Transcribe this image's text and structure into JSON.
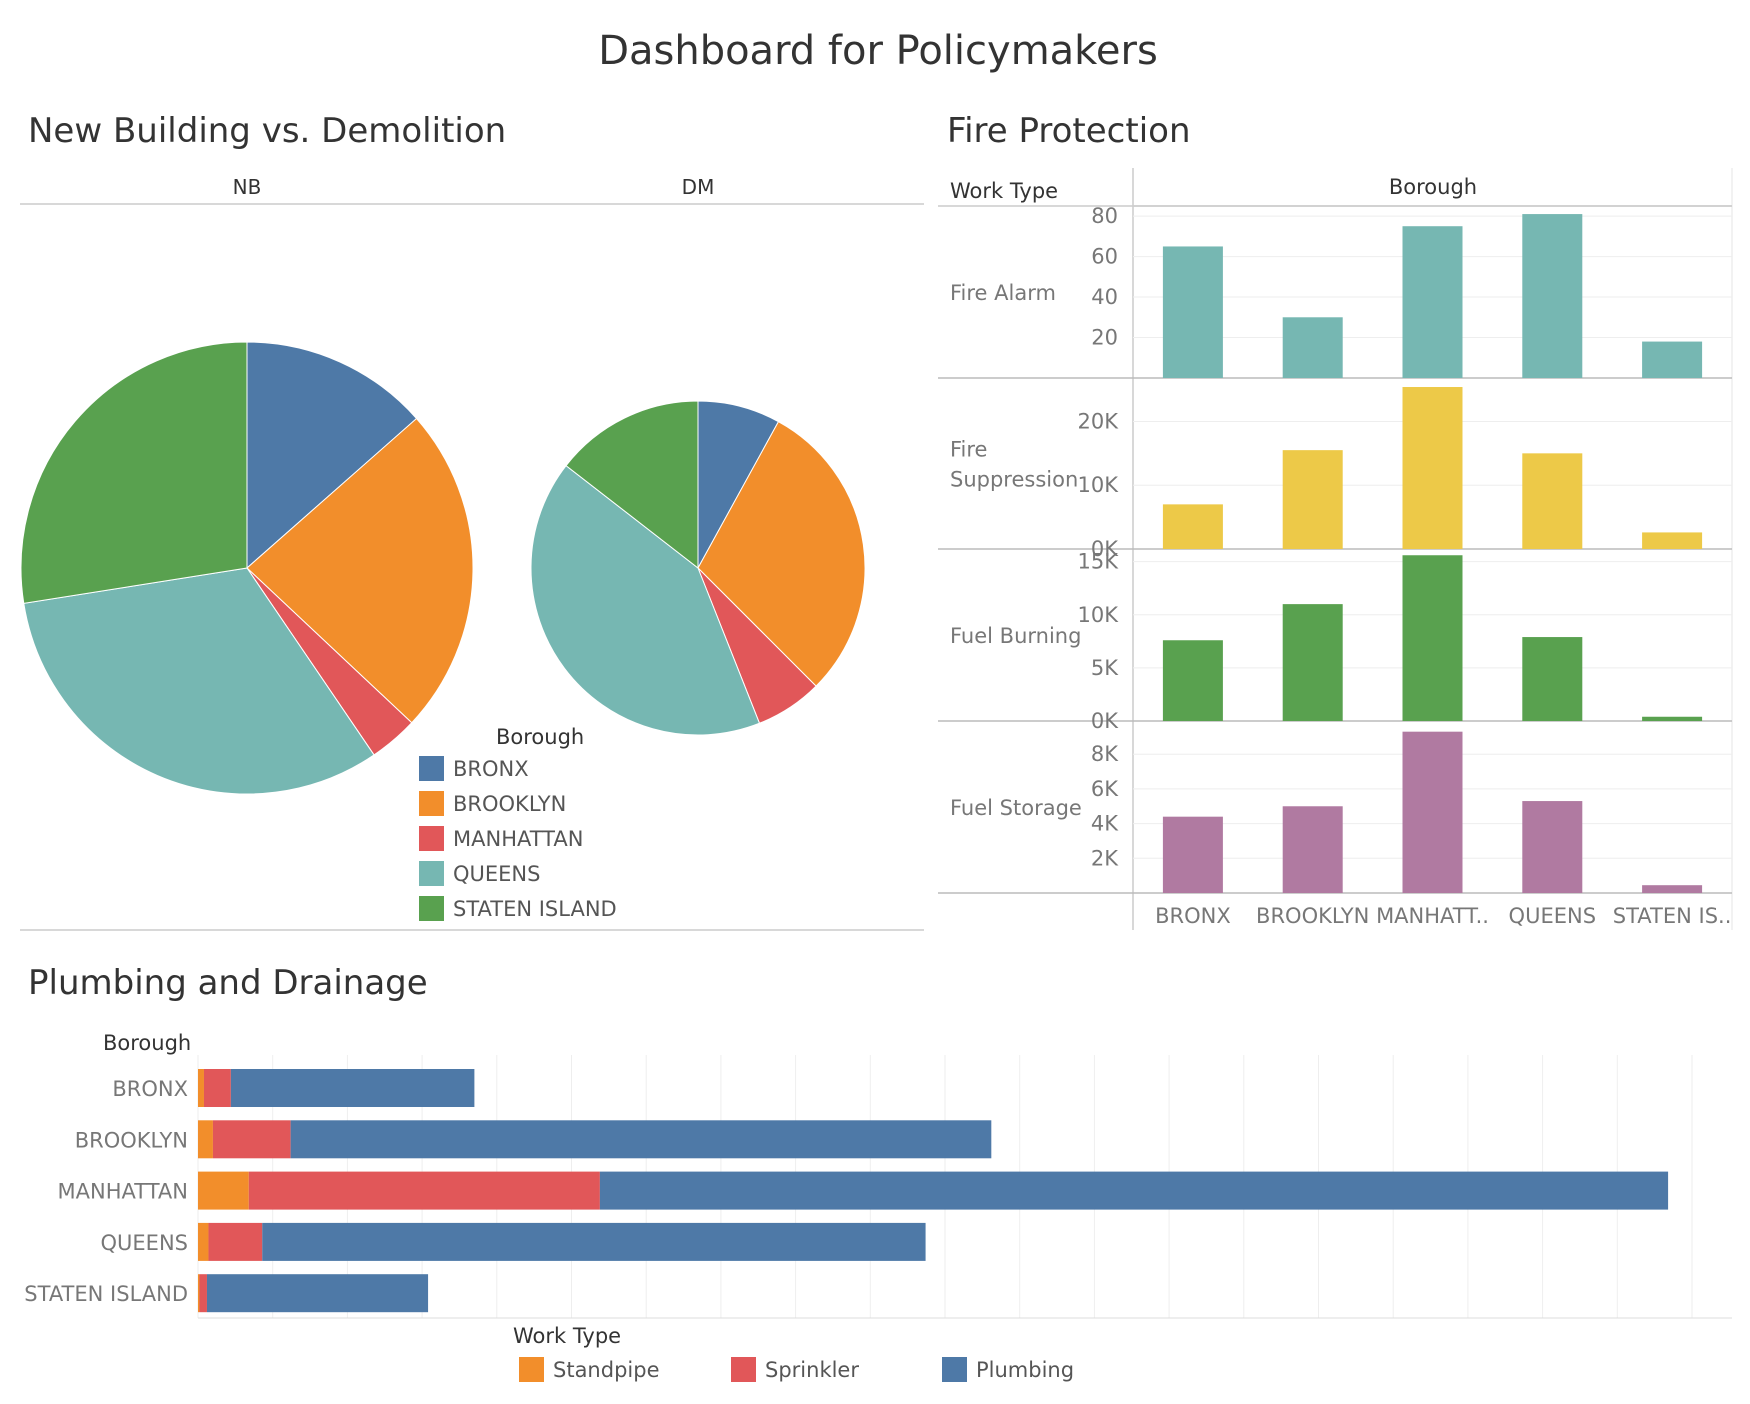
{
  "dashboard": {
    "title": "Dashboard for Policymakers"
  },
  "colors": {
    "BRONX": "#4e79a7",
    "BROOKLYN": "#f28e2b",
    "MANHATTAN": "#e15759",
    "QUEENS": "#76b7b2",
    "STATEN ISLAND": "#59a14f",
    "Fire Alarm": "#76b7b2",
    "Fire Suppression": "#edc948",
    "Fuel Burning": "#59a14f",
    "Fuel Storage": "#b07aa1",
    "Standpipe": "#f28e2b",
    "Sprinkler": "#e15759",
    "Plumbing": "#4e79a7"
  },
  "chart_data": [
    {
      "type": "pie",
      "title": "New Building vs. Demolition",
      "legend_title": "Borough",
      "legend_position": "bottom-right",
      "categories": [
        "BRONX",
        "BROOKLYN",
        "MANHATTAN",
        "QUEENS",
        "STATEN ISLAND"
      ],
      "series": [
        {
          "name": "NB",
          "values": [
            13.5,
            23.5,
            3.5,
            32,
            27.5
          ]
        },
        {
          "name": "DM",
          "values": [
            8,
            29.5,
            6.5,
            41.5,
            14.5
          ]
        }
      ]
    },
    {
      "type": "bar",
      "title": "Fire Protection",
      "row_header": "Work Type",
      "column_header": "Borough",
      "categories": [
        "BRONX",
        "BROOKLYN",
        "MANHATT..",
        "QUEENS",
        "STATEN IS.."
      ],
      "panels": [
        {
          "name": "Fire Alarm",
          "name_lines": [
            "Fire Alarm"
          ],
          "values": [
            65,
            30,
            75,
            81,
            18
          ],
          "ylim": [
            0,
            84
          ],
          "ticks": [
            20,
            40,
            60,
            80
          ],
          "tick_labels": [
            "20",
            "40",
            "60",
            "80"
          ]
        },
        {
          "name": "Fire Suppression",
          "name_lines": [
            "Fire",
            "Suppression"
          ],
          "values": [
            7000,
            15500,
            25400,
            15000,
            2600
          ],
          "ylim": [
            0,
            26500
          ],
          "ticks": [
            0,
            10000,
            20000
          ],
          "tick_labels": [
            "0K",
            "10K",
            "20K"
          ]
        },
        {
          "name": "Fuel Burning",
          "name_lines": [
            "Fuel Burning"
          ],
          "values": [
            7600,
            11000,
            15600,
            7900,
            400
          ],
          "ylim": [
            0,
            16000
          ],
          "ticks": [
            0,
            5000,
            10000,
            15000
          ],
          "tick_labels": [
            "0K",
            "5K",
            "10K",
            "15K"
          ]
        },
        {
          "name": "Fuel Storage",
          "name_lines": [
            "Fuel Storage"
          ],
          "values": [
            4400,
            5000,
            9300,
            5300,
            450
          ],
          "ylim": [
            0,
            9800
          ],
          "ticks": [
            2000,
            4000,
            6000,
            8000
          ],
          "tick_labels": [
            "2K",
            "4K",
            "6K",
            "8K"
          ]
        }
      ]
    },
    {
      "type": "bar",
      "orientation": "horizontal",
      "stacked": true,
      "title": "Plumbing and Drainage",
      "ylabel": "Borough",
      "legend_title": "Work Type",
      "legend_position": "bottom",
      "categories": [
        "BRONX",
        "BROOKLYN",
        "MANHATTAN",
        "QUEENS",
        "STATEN ISLAND"
      ],
      "xlim": [
        0,
        100
      ],
      "gridlines": 20,
      "series": [
        {
          "name": "Standpipe",
          "values": [
            0.4,
            1.0,
            3.4,
            0.7,
            0.1
          ]
        },
        {
          "name": "Sprinkler",
          "values": [
            1.8,
            5.2,
            23.5,
            3.6,
            0.5
          ]
        },
        {
          "name": "Plumbing",
          "values": [
            16.3,
            46.9,
            71.5,
            44.4,
            14.8
          ]
        }
      ]
    }
  ]
}
